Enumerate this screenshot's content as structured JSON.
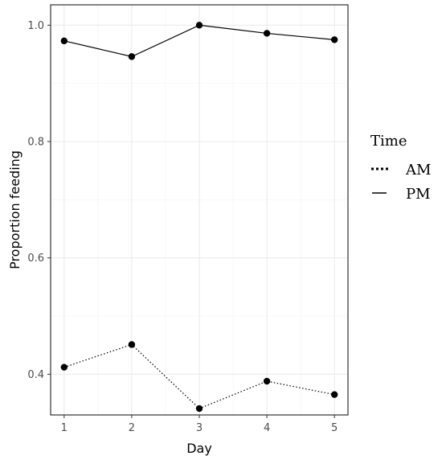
{
  "chart_data": {
    "type": "line",
    "xlabel": "Day",
    "ylabel": "Proportion feeding",
    "x": [
      1,
      2,
      3,
      4,
      5
    ],
    "x_ticks": [
      "1",
      "2",
      "3",
      "4",
      "5"
    ],
    "y_ticks": [
      "0.4",
      "0.6",
      "0.8",
      "1.0"
    ],
    "xlim": [
      0.8,
      5.2
    ],
    "ylim": [
      0.33,
      1.035
    ],
    "grid": true,
    "legend": {
      "title": "Time",
      "placement": "right"
    },
    "series": [
      {
        "name": "AM",
        "linetype": "dotted",
        "values": [
          0.412,
          0.451,
          0.341,
          0.388,
          0.365
        ]
      },
      {
        "name": "PM",
        "linetype": "solid",
        "values": [
          0.973,
          0.946,
          1.0,
          0.986,
          0.975
        ]
      }
    ],
    "colors": {
      "line": "#000000",
      "panel_border": "#333333",
      "grid_major": "#ebebeb",
      "grid_minor": "#f5f5f5"
    }
  }
}
